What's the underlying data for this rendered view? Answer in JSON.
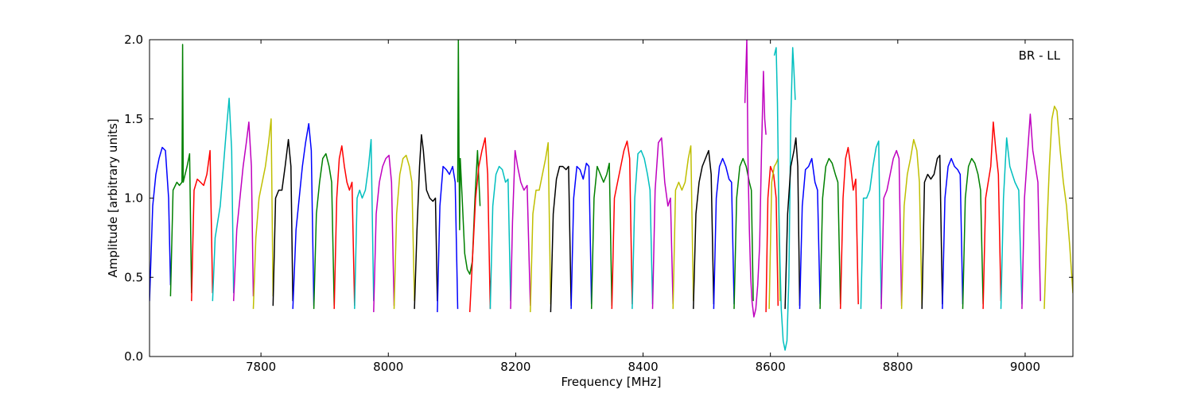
{
  "chart_data": {
    "type": "line",
    "title": "",
    "annotation": "BR - LL",
    "xlabel": "Frequency [MHz]",
    "ylabel": "Amplitude [arbitrary units]",
    "xlim": [
      7625,
      9075
    ],
    "ylim": [
      0.0,
      2.0
    ],
    "xticks": [
      7800,
      8000,
      8200,
      8400,
      8600,
      8800,
      9000
    ],
    "xtick_labels": [
      "7800",
      "8000",
      "8200",
      "8400",
      "8600",
      "8800",
      "9000"
    ],
    "yticks": [
      0.0,
      0.5,
      1.0,
      1.5,
      2.0
    ],
    "ytick_labels": [
      "0.0",
      "0.5",
      "1.0",
      "1.5",
      "2.0"
    ],
    "grid": false,
    "colors": [
      "#0000ff",
      "#008000",
      "#ff0000",
      "#00bfbf",
      "#bf00bf",
      "#bfbf00",
      "#000000"
    ],
    "series": [
      {
        "color": "#0000ff",
        "x": [
          7625,
          7630,
          7635,
          7640,
          7645,
          7650,
          7655,
          7658
        ],
        "y": [
          0.35,
          0.95,
          1.15,
          1.25,
          1.32,
          1.3,
          1.0,
          0.45
        ]
      },
      {
        "color": "#008000",
        "x": [
          7658,
          7662,
          7668,
          7672,
          7676,
          7677,
          7678,
          7684,
          7688,
          7691
        ],
        "y": [
          0.38,
          1.05,
          1.1,
          1.08,
          1.1,
          1.97,
          1.1,
          1.2,
          1.28,
          0.4
        ]
      },
      {
        "color": "#ff0000",
        "x": [
          7691,
          7695,
          7700,
          7705,
          7710,
          7715,
          7720,
          7724
        ],
        "y": [
          0.35,
          1.05,
          1.12,
          1.1,
          1.08,
          1.15,
          1.3,
          0.4
        ]
      },
      {
        "color": "#00bfbf",
        "x": [
          7724,
          7728,
          7732,
          7736,
          7740,
          7745,
          7750,
          7754,
          7757
        ],
        "y": [
          0.35,
          0.75,
          0.85,
          0.95,
          1.15,
          1.4,
          1.63,
          1.3,
          0.4
        ]
      },
      {
        "color": "#bf00bf",
        "x": [
          7757,
          7762,
          7767,
          7772,
          7777,
          7781,
          7785,
          7788
        ],
        "y": [
          0.35,
          0.8,
          1.0,
          1.2,
          1.35,
          1.48,
          1.2,
          0.38
        ]
      },
      {
        "color": "#bfbf00",
        "x": [
          7788,
          7792,
          7797,
          7802,
          7807,
          7812,
          7816,
          7819
        ],
        "y": [
          0.3,
          0.75,
          1.0,
          1.1,
          1.2,
          1.35,
          1.5,
          0.38
        ]
      },
      {
        "color": "#000000",
        "x": [
          7819,
          7823,
          7828,
          7833,
          7838,
          7843,
          7847,
          7850
        ],
        "y": [
          0.32,
          1.0,
          1.05,
          1.05,
          1.2,
          1.37,
          1.2,
          0.35
        ]
      },
      {
        "color": "#0000ff",
        "x": [
          7850,
          7855,
          7860,
          7865,
          7870,
          7875,
          7879,
          7883
        ],
        "y": [
          0.3,
          0.8,
          1.0,
          1.2,
          1.35,
          1.47,
          1.3,
          0.32
        ]
      },
      {
        "color": "#008000",
        "x": [
          7883,
          7887,
          7892,
          7897,
          7902,
          7907,
          7911,
          7915
        ],
        "y": [
          0.3,
          0.9,
          1.1,
          1.25,
          1.28,
          1.2,
          1.1,
          0.32
        ]
      },
      {
        "color": "#ff0000",
        "x": [
          7915,
          7919,
          7923,
          7927,
          7931,
          7935,
          7939,
          7943,
          7947
        ],
        "y": [
          0.3,
          1.0,
          1.25,
          1.33,
          1.2,
          1.1,
          1.05,
          1.1,
          0.32
        ]
      },
      {
        "color": "#00bfbf",
        "x": [
          7947,
          7951,
          7955,
          7959,
          7964,
          7969,
          7973,
          7977
        ],
        "y": [
          0.3,
          1.0,
          1.05,
          1.0,
          1.05,
          1.2,
          1.37,
          0.35
        ]
      },
      {
        "color": "#bf00bf",
        "x": [
          7977,
          7981,
          7986,
          7991,
          7996,
          8001,
          8005,
          8009
        ],
        "y": [
          0.28,
          0.9,
          1.1,
          1.2,
          1.25,
          1.27,
          1.1,
          0.32
        ]
      },
      {
        "color": "#bfbf00",
        "x": [
          8009,
          8013,
          8018,
          8023,
          8028,
          8033,
          8037,
          8041
        ],
        "y": [
          0.3,
          0.9,
          1.15,
          1.25,
          1.27,
          1.2,
          1.1,
          0.35
        ]
      },
      {
        "color": "#000000",
        "x": [
          8041,
          8045,
          8049,
          8052,
          8055,
          8060,
          8065,
          8070,
          8074,
          8077
        ],
        "y": [
          0.3,
          0.8,
          1.2,
          1.4,
          1.3,
          1.05,
          1.0,
          0.98,
          1.0,
          0.35
        ]
      },
      {
        "color": "#0000ff",
        "x": [
          8077,
          8081,
          8086,
          8091,
          8096,
          8101,
          8105,
          8109
        ],
        "y": [
          0.28,
          0.95,
          1.2,
          1.18,
          1.15,
          1.2,
          1.1,
          0.3
        ]
      },
      {
        "color": "#008000",
        "x": [
          8109,
          8110,
          8111,
          8112,
          8113,
          8116,
          8120,
          8124,
          8128,
          8132,
          8136,
          8140,
          8144
        ],
        "y": [
          1.1,
          2.0,
          1.3,
          0.8,
          1.25,
          1.0,
          0.65,
          0.55,
          0.52,
          0.6,
          1.0,
          1.3,
          0.95
        ]
      },
      {
        "color": "#ff0000",
        "x": [
          8128,
          8132,
          8137,
          8142,
          8147,
          8152,
          8156,
          8160
        ],
        "y": [
          0.28,
          0.6,
          1.0,
          1.2,
          1.3,
          1.38,
          1.15,
          0.3
        ]
      },
      {
        "color": "#00bfbf",
        "x": [
          8160,
          8164,
          8169,
          8174,
          8179,
          8184,
          8188,
          8192
        ],
        "y": [
          0.3,
          0.95,
          1.15,
          1.2,
          1.18,
          1.1,
          1.12,
          0.35
        ]
      },
      {
        "color": "#bf00bf",
        "x": [
          8192,
          8195,
          8199,
          8203,
          8208,
          8213,
          8218,
          8223
        ],
        "y": [
          0.3,
          0.85,
          1.3,
          1.2,
          1.1,
          1.05,
          1.08,
          0.32
        ]
      },
      {
        "color": "#bfbf00",
        "x": [
          8223,
          8227,
          8232,
          8237,
          8242,
          8247,
          8251,
          8255
        ],
        "y": [
          0.28,
          0.9,
          1.05,
          1.05,
          1.15,
          1.25,
          1.35,
          0.33
        ]
      },
      {
        "color": "#000000",
        "x": [
          8255,
          8259,
          8264,
          8269,
          8274,
          8279,
          8283,
          8287
        ],
        "y": [
          0.28,
          0.9,
          1.12,
          1.2,
          1.2,
          1.18,
          1.2,
          0.32
        ]
      },
      {
        "color": "#0000ff",
        "x": [
          8287,
          8291,
          8296,
          8301,
          8306,
          8311,
          8315,
          8319
        ],
        "y": [
          0.3,
          1.0,
          1.2,
          1.18,
          1.12,
          1.22,
          1.2,
          0.33
        ]
      },
      {
        "color": "#008000",
        "x": [
          8319,
          8323,
          8328,
          8333,
          8338,
          8343,
          8347,
          8351
        ],
        "y": [
          0.3,
          1.0,
          1.2,
          1.15,
          1.1,
          1.15,
          1.22,
          0.32
        ]
      },
      {
        "color": "#ff0000",
        "x": [
          8351,
          8355,
          8360,
          8365,
          8370,
          8375,
          8379,
          8383
        ],
        "y": [
          0.3,
          1.0,
          1.1,
          1.2,
          1.3,
          1.36,
          1.25,
          0.33
        ]
      },
      {
        "color": "#00bfbf",
        "x": [
          8383,
          8387,
          8392,
          8397,
          8402,
          8407,
          8411,
          8415
        ],
        "y": [
          0.3,
          1.0,
          1.28,
          1.3,
          1.25,
          1.15,
          1.05,
          0.33
        ]
      },
      {
        "color": "#bf00bf",
        "x": [
          8415,
          8419,
          8424,
          8429,
          8434,
          8439,
          8443,
          8447
        ],
        "y": [
          0.3,
          1.05,
          1.35,
          1.38,
          1.1,
          0.95,
          1.0,
          0.33
        ]
      },
      {
        "color": "#bfbf00",
        "x": [
          8447,
          8451,
          8456,
          8461,
          8466,
          8471,
          8475,
          8479
        ],
        "y": [
          0.3,
          1.05,
          1.1,
          1.05,
          1.1,
          1.25,
          1.33,
          0.35
        ]
      },
      {
        "color": "#000000",
        "x": [
          8479,
          8483,
          8488,
          8493,
          8498,
          8503,
          8507,
          8511
        ],
        "y": [
          0.3,
          0.9,
          1.1,
          1.2,
          1.25,
          1.3,
          1.15,
          0.33
        ]
      },
      {
        "color": "#0000ff",
        "x": [
          8511,
          8515,
          8520,
          8525,
          8530,
          8535,
          8539,
          8543
        ],
        "y": [
          0.3,
          1.0,
          1.2,
          1.25,
          1.2,
          1.12,
          1.1,
          0.33
        ]
      },
      {
        "color": "#008000",
        "x": [
          8543,
          8547,
          8552,
          8557,
          8562,
          8567,
          8570,
          8573
        ],
        "y": [
          0.3,
          1.0,
          1.2,
          1.25,
          1.2,
          1.1,
          1.05,
          0.35
        ]
      },
      {
        "color": "#bf00bf",
        "x": [
          8560,
          8563,
          8565,
          8567,
          8569,
          8571,
          8574,
          8577,
          8580,
          8583,
          8586,
          8589,
          8591,
          8593
        ],
        "y": [
          1.6,
          2.0,
          1.2,
          0.8,
          0.5,
          0.35,
          0.25,
          0.3,
          0.45,
          0.7,
          1.3,
          1.8,
          1.5,
          1.4
        ]
      },
      {
        "color": "#ff0000",
        "x": [
          8593,
          8596,
          8600,
          8605,
          8609,
          8612
        ],
        "y": [
          0.28,
          1.0,
          1.2,
          1.15,
          1.0,
          0.32
        ]
      },
      {
        "color": "#bfbf00",
        "x": [
          8598,
          8602,
          8606,
          8609,
          8612,
          8615
        ],
        "y": [
          0.3,
          1.1,
          1.2,
          1.22,
          1.25,
          0.35
        ]
      },
      {
        "color": "#00bfbf",
        "x": [
          8606,
          8609,
          8611,
          8613,
          8615,
          8617,
          8620,
          8623,
          8626,
          8629,
          8632,
          8635,
          8637,
          8639
        ],
        "y": [
          1.9,
          1.95,
          1.6,
          1.0,
          0.6,
          0.3,
          0.1,
          0.04,
          0.1,
          0.5,
          1.5,
          1.95,
          1.8,
          1.62
        ]
      },
      {
        "color": "#000000",
        "x": [
          8623,
          8627,
          8632,
          8637,
          8640,
          8643,
          8646
        ],
        "y": [
          0.3,
          0.9,
          1.2,
          1.3,
          1.38,
          1.2,
          0.32
        ]
      },
      {
        "color": "#0000ff",
        "x": [
          8646,
          8650,
          8655,
          8660,
          8665,
          8670,
          8674,
          8678
        ],
        "y": [
          0.3,
          0.95,
          1.18,
          1.2,
          1.25,
          1.1,
          1.05,
          0.33
        ]
      },
      {
        "color": "#008000",
        "x": [
          8678,
          8682,
          8687,
          8692,
          8697,
          8702,
          8706,
          8710
        ],
        "y": [
          0.3,
          1.0,
          1.2,
          1.25,
          1.22,
          1.15,
          1.1,
          0.33
        ]
      },
      {
        "color": "#ff0000",
        "x": [
          8710,
          8714,
          8718,
          8722,
          8726,
          8730,
          8734,
          8738
        ],
        "y": [
          0.3,
          1.0,
          1.25,
          1.32,
          1.2,
          1.05,
          1.12,
          0.33
        ]
      },
      {
        "color": "#00bfbf",
        "x": [
          8742,
          8746,
          8751,
          8756,
          8761,
          8766,
          8770,
          8774
        ],
        "y": [
          0.3,
          1.0,
          1.0,
          1.05,
          1.2,
          1.32,
          1.36,
          0.33
        ]
      },
      {
        "color": "#bf00bf",
        "x": [
          8774,
          8778,
          8783,
          8788,
          8793,
          8798,
          8802,
          8806
        ],
        "y": [
          0.3,
          1.0,
          1.05,
          1.15,
          1.25,
          1.3,
          1.25,
          0.32
        ]
      },
      {
        "color": "#bfbf00",
        "x": [
          8806,
          8810,
          8815,
          8820,
          8825,
          8830,
          8834,
          8838
        ],
        "y": [
          0.3,
          0.95,
          1.15,
          1.25,
          1.37,
          1.3,
          1.1,
          0.32
        ]
      },
      {
        "color": "#000000",
        "x": [
          8838,
          8842,
          8847,
          8852,
          8857,
          8862,
          8866,
          8870
        ],
        "y": [
          0.3,
          1.1,
          1.15,
          1.12,
          1.15,
          1.25,
          1.27,
          0.33
        ]
      },
      {
        "color": "#0000ff",
        "x": [
          8870,
          8874,
          8879,
          8884,
          8889,
          8894,
          8898,
          8902
        ],
        "y": [
          0.3,
          1.0,
          1.2,
          1.25,
          1.2,
          1.18,
          1.15,
          0.33
        ]
      },
      {
        "color": "#008000",
        "x": [
          8902,
          8906,
          8911,
          8916,
          8921,
          8926,
          8930,
          8934
        ],
        "y": [
          0.3,
          1.0,
          1.2,
          1.25,
          1.22,
          1.15,
          1.05,
          0.33
        ]
      },
      {
        "color": "#ff0000",
        "x": [
          8934,
          8938,
          8942,
          8946,
          8950,
          8954,
          8958,
          8962
        ],
        "y": [
          0.3,
          1.0,
          1.1,
          1.2,
          1.48,
          1.3,
          1.15,
          0.35
        ]
      },
      {
        "color": "#00bfbf",
        "x": [
          8962,
          8966,
          8971,
          8976,
          8980,
          8984,
          8990,
          8995
        ],
        "y": [
          0.3,
          1.0,
          1.38,
          1.2,
          1.15,
          1.1,
          1.05,
          0.33
        ]
      },
      {
        "color": "#bf00bf",
        "x": [
          8995,
          8999,
          9004,
          9008,
          9012,
          9016,
          9020,
          9024
        ],
        "y": [
          0.3,
          1.0,
          1.3,
          1.53,
          1.3,
          1.2,
          1.1,
          0.35
        ]
      },
      {
        "color": "#bfbf00",
        "x": [
          9030,
          9034,
          9038,
          9042,
          9046,
          9050,
          9055,
          9060,
          9065,
          9070,
          9075
        ],
        "y": [
          0.3,
          0.8,
          1.2,
          1.5,
          1.58,
          1.55,
          1.3,
          1.1,
          0.95,
          0.7,
          0.4
        ]
      }
    ]
  }
}
